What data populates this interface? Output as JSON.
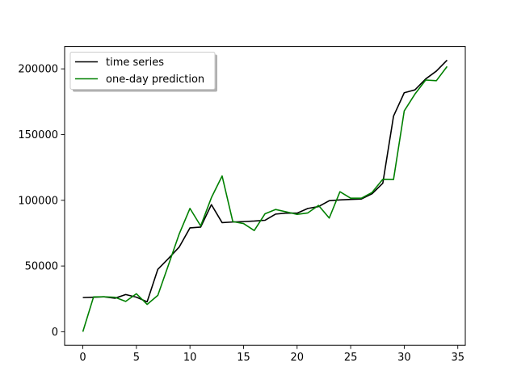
{
  "chart_data": {
    "type": "line",
    "title": "",
    "xlabel": "",
    "ylabel": "",
    "xlim": [
      -1.7,
      35.7
    ],
    "ylim": [
      -10330,
      216960
    ],
    "x_ticks": [
      0,
      5,
      10,
      15,
      20,
      25,
      30,
      35
    ],
    "y_ticks": [
      0,
      50000,
      100000,
      150000,
      200000
    ],
    "x_tick_labels": [
      "0",
      "5",
      "10",
      "15",
      "20",
      "25",
      "30",
      "35"
    ],
    "y_tick_labels": [
      "0",
      "50000",
      "100000",
      "150000",
      "200000"
    ],
    "grid": false,
    "legend_position": "upper-left",
    "x": [
      0,
      1,
      2,
      3,
      4,
      5,
      6,
      7,
      8,
      9,
      10,
      11,
      12,
      13,
      14,
      15,
      16,
      17,
      18,
      19,
      20,
      21,
      22,
      23,
      24,
      25,
      26,
      27,
      28,
      29,
      30,
      31,
      32,
      33,
      34
    ],
    "series": [
      {
        "name": "time series",
        "color": "#000000",
        "values": [
          26000,
          26300,
          26600,
          25500,
          28300,
          26300,
          22800,
          47500,
          55800,
          64500,
          79000,
          79600,
          96700,
          83000,
          83500,
          83800,
          84200,
          84800,
          89500,
          90300,
          90200,
          93800,
          95200,
          99700,
          100300,
          100700,
          101000,
          105000,
          113000,
          164000,
          181800,
          184000,
          192300,
          198300,
          206600
        ]
      },
      {
        "name": "one-day prediction",
        "color": "#008000",
        "values": [
          0,
          26500,
          26600,
          26200,
          23100,
          28900,
          20800,
          27700,
          51000,
          74500,
          93800,
          80500,
          102000,
          118500,
          83800,
          82300,
          77000,
          89700,
          93000,
          91200,
          89300,
          90400,
          96100,
          86500,
          106500,
          101600,
          101600,
          106000,
          116000,
          115800,
          168000,
          180800,
          191500,
          191000,
          201800
        ]
      }
    ]
  }
}
